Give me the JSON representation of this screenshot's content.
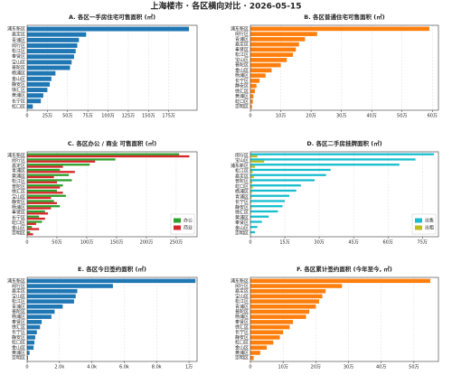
{
  "title": "上海楼市 · 各区横向对比 · 2026-05-15",
  "chart_data": [
    {
      "type": "barh",
      "title": "A. 各区一手房住宅可售面积 (㎡)",
      "categories": [
        "浦东新区",
        "嘉定区",
        "青浦区",
        "闵行区",
        "松江区",
        "奉贤区",
        "宝山区",
        "普陀区",
        "杨浦区",
        "金山区",
        "静安区",
        "徐汇区",
        "黄浦区",
        "长宁区",
        "虹口区"
      ],
      "values": [
        2000000,
        730000,
        640000,
        620000,
        600000,
        580000,
        550000,
        530000,
        350000,
        300000,
        280000,
        250000,
        200000,
        170000,
        70000
      ],
      "color": "#1f77b4",
      "xlim": [
        0,
        2100000
      ],
      "xticks": [
        0,
        {
          "value": 250000,
          "label": "25万"
        },
        {
          "value": 500000,
          "label": "50万"
        },
        {
          "value": 750000,
          "label": "75万"
        },
        {
          "value": 1000000,
          "label": "100万"
        },
        {
          "value": 1250000,
          "label": "125万"
        },
        {
          "value": 1500000,
          "label": "150万"
        },
        {
          "value": 1750000,
          "label": "175万"
        }
      ],
      "grid": true
    },
    {
      "type": "barh",
      "title": "B. 各区普通住宅可售面积 (㎡)",
      "categories": [
        "浦东新区",
        "闵行区",
        "青浦区",
        "嘉定区",
        "奉贤区",
        "松江区",
        "宝山区",
        "普陀区",
        "金山区",
        "杨浦区",
        "长宁区",
        "静安区",
        "徐汇区",
        "黄浦区",
        "虹口区",
        "崇明区"
      ],
      "values": [
        590000,
        220000,
        180000,
        160000,
        150000,
        140000,
        120000,
        100000,
        70000,
        50000,
        30000,
        20000,
        15000,
        10000,
        8000,
        5000
      ],
      "color": "#ff7f0e",
      "xlim": [
        0,
        620000
      ],
      "xticks": [
        0,
        {
          "value": 100000,
          "label": "10万"
        },
        {
          "value": 200000,
          "label": "20万"
        },
        {
          "value": 300000,
          "label": "30万"
        },
        {
          "value": 400000,
          "label": "40万"
        },
        {
          "value": 500000,
          "label": "50万"
        },
        {
          "value": 600000,
          "label": "60万"
        }
      ],
      "grid": true
    },
    {
      "type": "barh",
      "title": "C. 各区办公 / 商业 可售面积 (㎡)",
      "categories": [
        "浦东新区",
        "闵行区",
        "嘉定区",
        "青浦区",
        "黄浦区",
        "松江区",
        "普陀区",
        "徐汇区",
        "宝山区",
        "静安区",
        "杨浦区",
        "奉贤区",
        "长宁区",
        "虹口区",
        "金山区",
        "崇明区"
      ],
      "series": [
        {
          "name": "办公",
          "color": "#2ca02c",
          "values": [
            2550000,
            1480000,
            1050000,
            550000,
            700000,
            750000,
            600000,
            500000,
            650000,
            450000,
            550000,
            300000,
            200000,
            250000,
            80000,
            50000
          ]
        },
        {
          "name": "商业",
          "color": "#d62728",
          "values": [
            2720000,
            1140000,
            600000,
            800000,
            450000,
            500000,
            550000,
            600000,
            400000,
            500000,
            400000,
            350000,
            300000,
            150000,
            200000,
            100000
          ]
        }
      ],
      "xlim": [
        0,
        2850000
      ],
      "xticks": [
        0,
        {
          "value": 500000,
          "label": "50万"
        },
        {
          "value": 1000000,
          "label": "100万"
        },
        {
          "value": 1500000,
          "label": "150万"
        },
        {
          "value": 2000000,
          "label": "200万"
        },
        {
          "value": 2500000,
          "label": "250万"
        }
      ],
      "grid": true,
      "legend": "lower right"
    },
    {
      "type": "barh",
      "title": "D. 各区二手房挂牌面积 (㎡)",
      "categories": [
        "闵行区",
        "宝山区",
        "浦东新区",
        "松江区",
        "嘉定区",
        "普陀区",
        "虹口区",
        "杨浦区",
        "青浦区",
        "长宁区",
        "静安区",
        "徐汇区",
        "黄浦区",
        "奉贤区",
        "金山区",
        "崇明区"
      ],
      "series": [
        {
          "name": "出售",
          "color": "#17becf",
          "values": [
            800000,
            720000,
            650000,
            350000,
            330000,
            280000,
            220000,
            200000,
            170000,
            150000,
            140000,
            120000,
            80000,
            50000,
            30000,
            20000
          ]
        },
        {
          "name": "出租",
          "color": "#bcbd22",
          "values": [
            30000,
            60000,
            20000,
            10000,
            15000,
            8000,
            10000,
            6000,
            5000,
            4000,
            5000,
            3000,
            2000,
            2000,
            1000,
            1000
          ]
        }
      ],
      "xlim": [
        0,
        820000
      ],
      "xticks": [
        0,
        {
          "value": 150000,
          "label": "15万"
        },
        {
          "value": 300000,
          "label": "30万"
        },
        {
          "value": 450000,
          "label": "45万"
        },
        {
          "value": 600000,
          "label": "60万"
        },
        {
          "value": 750000,
          "label": "75万"
        }
      ],
      "grid": true,
      "legend": "lower right"
    },
    {
      "type": "barh",
      "title": "E. 各区今日签约面积 (㎡)",
      "categories": [
        "浦东新区",
        "闵行区",
        "嘉定区",
        "宝山区",
        "松江区",
        "青浦区",
        "普陀区",
        "杨浦区",
        "奉贤区",
        "徐汇区",
        "长宁区",
        "静安区",
        "虹口区",
        "金山区",
        "黄浦区",
        "崇明区"
      ],
      "values": [
        10400,
        5300,
        3100,
        3000,
        2900,
        2200,
        1700,
        1500,
        900,
        800,
        600,
        500,
        450,
        400,
        150,
        50
      ],
      "color": "#1f77b4",
      "xlim": [
        0,
        10500
      ],
      "xticks": [
        0,
        {
          "value": 2000,
          "label": "2.0k"
        },
        {
          "value": 4000,
          "label": "4.0k"
        },
        {
          "value": 6000,
          "label": "6.0k"
        },
        {
          "value": 8000,
          "label": "8.0k"
        },
        {
          "value": 10000,
          "label": "1万"
        }
      ],
      "grid": true
    },
    {
      "type": "barh",
      "title": "F. 各区累计签约面积 (今年至今, ㎡)",
      "categories": [
        "浦东新区",
        "闵行区",
        "嘉定区",
        "宝山区",
        "松江区",
        "青浦区",
        "普陀区",
        "杨浦区",
        "奉贤区",
        "徐汇区",
        "长宁区",
        "静安区",
        "虹口区",
        "金山区",
        "黄浦区",
        "崇明区"
      ],
      "values": [
        550000,
        280000,
        230000,
        220000,
        210000,
        200000,
        180000,
        170000,
        130000,
        120000,
        100000,
        90000,
        70000,
        50000,
        30000,
        10000
      ],
      "color": "#ff7f0e",
      "xlim": [
        0,
        575000
      ],
      "xticks": [
        0,
        {
          "value": 100000,
          "label": "10万"
        },
        {
          "value": 200000,
          "label": "20万"
        },
        {
          "value": 300000,
          "label": "30万"
        },
        {
          "value": 400000,
          "label": "40万"
        },
        {
          "value": 500000,
          "label": "50万"
        }
      ],
      "grid": true
    }
  ]
}
